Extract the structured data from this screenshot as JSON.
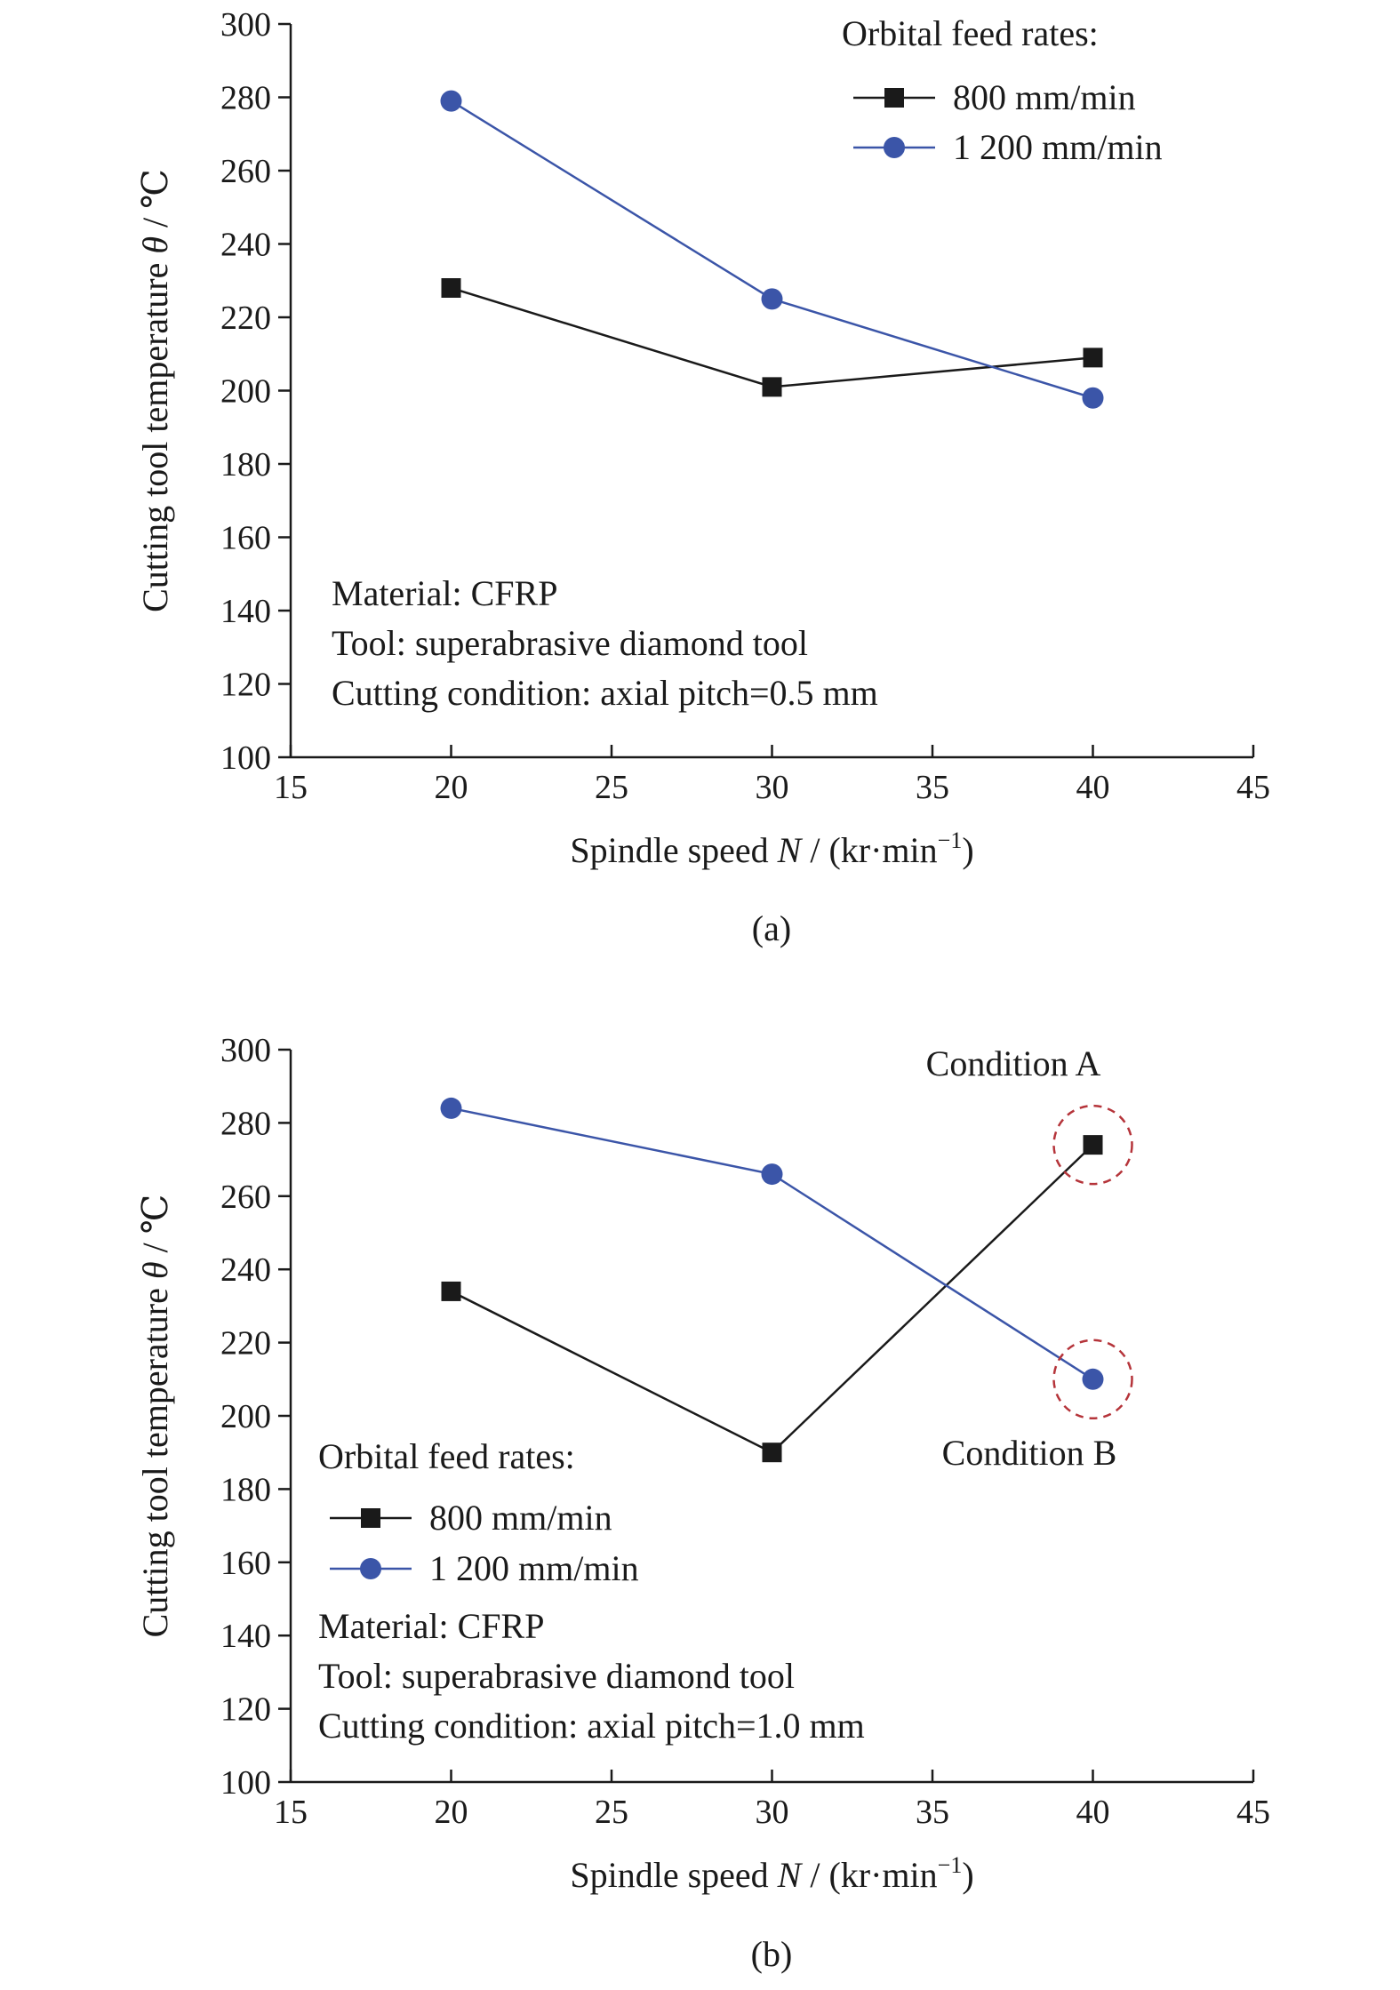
{
  "colors": {
    "s800": "#1a1a1a",
    "s1200": "#3b55a8",
    "highlight": "#b5343a"
  },
  "chart_data": [
    {
      "type": "line",
      "caption": "(a)",
      "xlabel_prefix": "Spindle speed ",
      "xlabel_var": "N",
      "xlabel_unit": " / (kr·min",
      "xlabel_sup": "−1",
      "xlabel_close": ")",
      "ylabel_prefix": "Cutting tool temperature ",
      "ylabel_var": "θ",
      "ylabel_unit": " / ℃",
      "xlim": [
        15,
        45
      ],
      "ylim": [
        100,
        300
      ],
      "xticks": [
        "15",
        "20",
        "25",
        "30",
        "35",
        "40",
        "45"
      ],
      "yticks": [
        "100",
        "120",
        "140",
        "160",
        "180",
        "200",
        "220",
        "240",
        "260",
        "280",
        "300"
      ],
      "x": [
        20,
        30,
        40
      ],
      "legend_title": "Orbital feed rates:",
      "series": [
        {
          "name": "800 mm/min",
          "marker": "square",
          "values": [
            228,
            201,
            209
          ]
        },
        {
          "name": "1 200 mm/min",
          "marker": "circle",
          "values": [
            279,
            225,
            198
          ]
        }
      ],
      "annotations": [
        "Material: CFRP",
        "Tool: superabrasive diamond tool",
        "Cutting condition: axial pitch=0.5 mm"
      ]
    },
    {
      "type": "line",
      "caption": "(b)",
      "xlabel_prefix": "Spindle speed ",
      "xlabel_var": "N",
      "xlabel_unit": " / (kr·min",
      "xlabel_sup": "−1",
      "xlabel_close": ")",
      "ylabel_prefix": "Cutting tool temperature ",
      "ylabel_var": "θ",
      "ylabel_unit": " / ℃",
      "xlim": [
        15,
        45
      ],
      "ylim": [
        100,
        300
      ],
      "xticks": [
        "15",
        "20",
        "25",
        "30",
        "35",
        "40",
        "45"
      ],
      "yticks": [
        "100",
        "120",
        "140",
        "160",
        "180",
        "200",
        "220",
        "240",
        "260",
        "280",
        "300"
      ],
      "x": [
        20,
        30,
        40
      ],
      "legend_title": "Orbital feed rates:",
      "series": [
        {
          "name": "800 mm/min",
          "marker": "square",
          "values": [
            234,
            190,
            274
          ]
        },
        {
          "name": "1 200 mm/min",
          "marker": "circle",
          "values": [
            284,
            266,
            210
          ]
        }
      ],
      "annotations": [
        "Material: CFRP",
        "Tool: superabrasive diamond tool",
        "Cutting condition: axial pitch=1.0 mm"
      ],
      "highlights": [
        {
          "label": "Condition A",
          "x": 40,
          "y": 274
        },
        {
          "label": "Condition B",
          "x": 40,
          "y": 210
        }
      ]
    }
  ]
}
